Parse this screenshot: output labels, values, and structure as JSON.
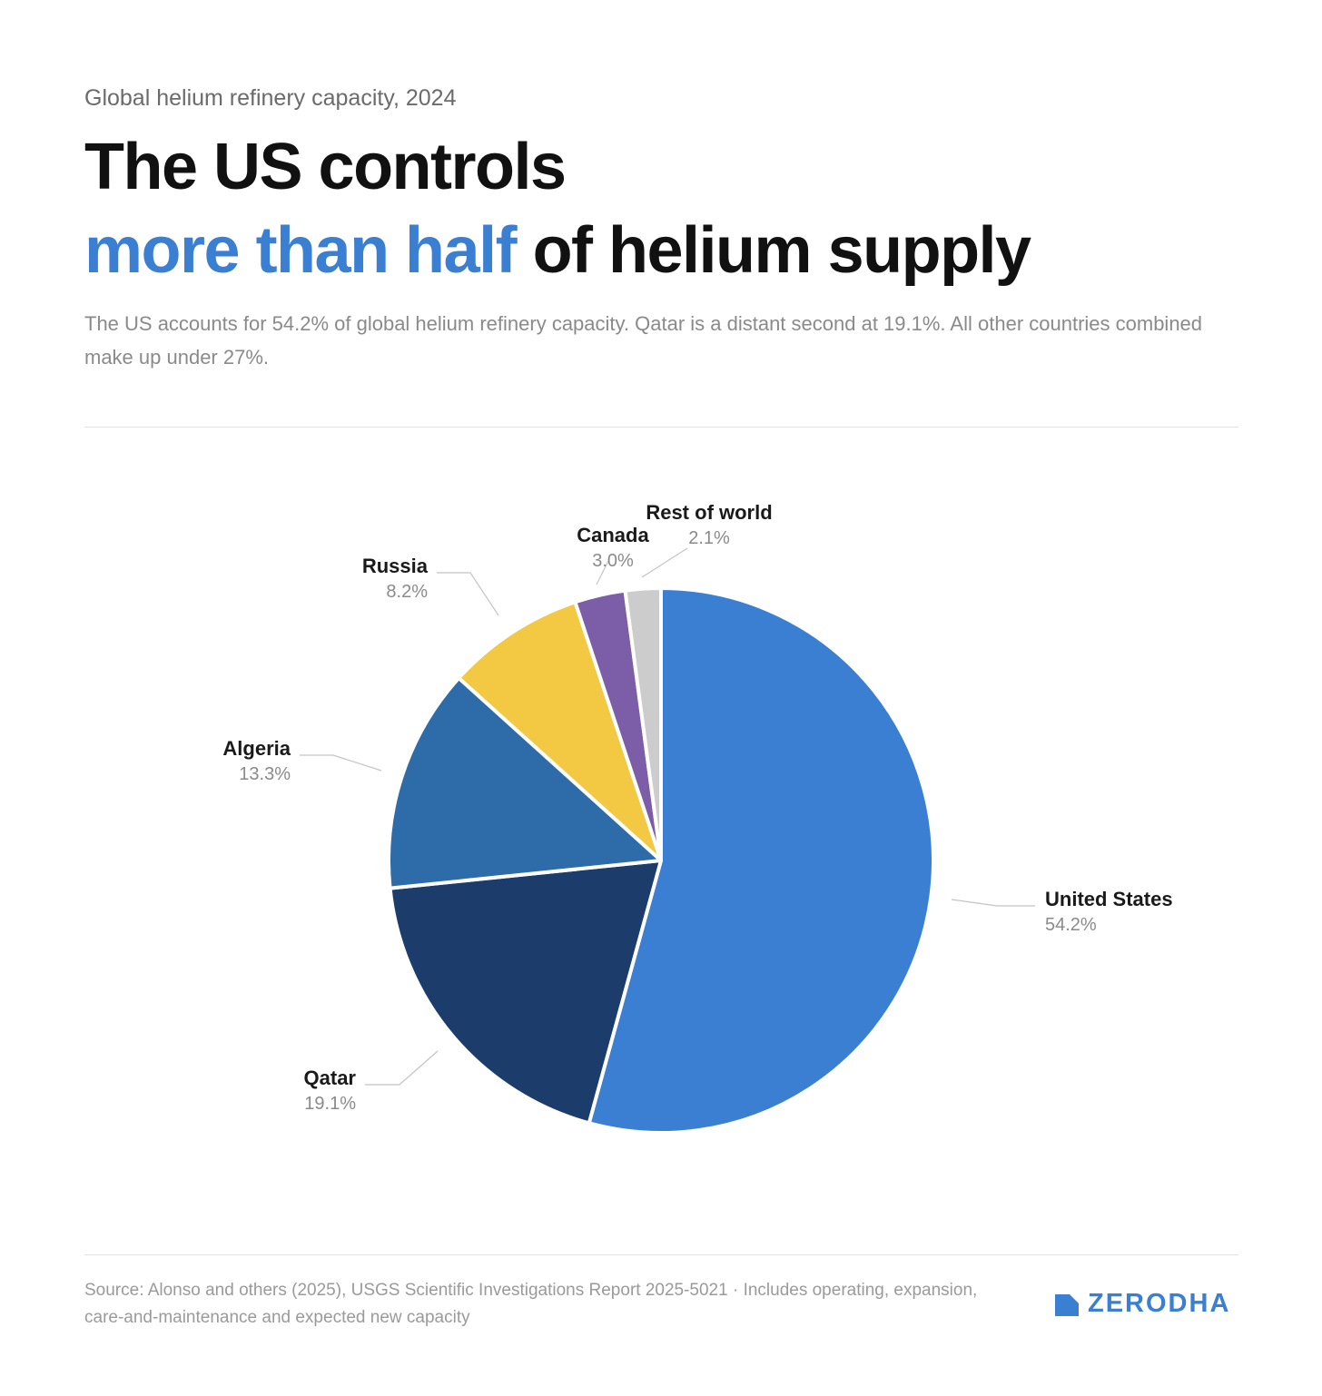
{
  "header": {
    "kicker": "Global helium refinery capacity, 2024",
    "headline_line1": "The US controls",
    "headline_accent": "more than half",
    "headline_rest": " of helium supply",
    "subtitle": "The US accounts for 54.2% of global helium refinery capacity. Qatar is a distant second at 19.1%. All other countries combined make up under 27%."
  },
  "chart_data": {
    "type": "pie",
    "start": "12 o'clock",
    "direction": "clockwise",
    "slices": [
      {
        "label": "United States",
        "value": 54.2,
        "value_label": "54.2%",
        "color": "#3a7fd1"
      },
      {
        "label": "Qatar",
        "value": 19.1,
        "value_label": "19.1%",
        "color": "#1c3d6b"
      },
      {
        "label": "Algeria",
        "value": 13.3,
        "value_label": "13.3%",
        "color": "#2d6ca8"
      },
      {
        "label": "Russia",
        "value": 8.2,
        "value_label": "8.2%",
        "color": "#f3c842"
      },
      {
        "label": "Canada",
        "value": 3.0,
        "value_label": "3.0%",
        "color": "#7b5ea7"
      },
      {
        "label": "Rest of world",
        "value": 2.1,
        "value_label": "2.1%",
        "color": "#cccccc"
      }
    ]
  },
  "footer": {
    "source": "Source: Alonso and others (2025), USGS Scientific Investigations Report 2025-5021 · Includes operating, expansion, care-and-maintenance and expected new capacity",
    "logo_text": "ZERODHA",
    "brand_color": "#3a7fd1"
  }
}
